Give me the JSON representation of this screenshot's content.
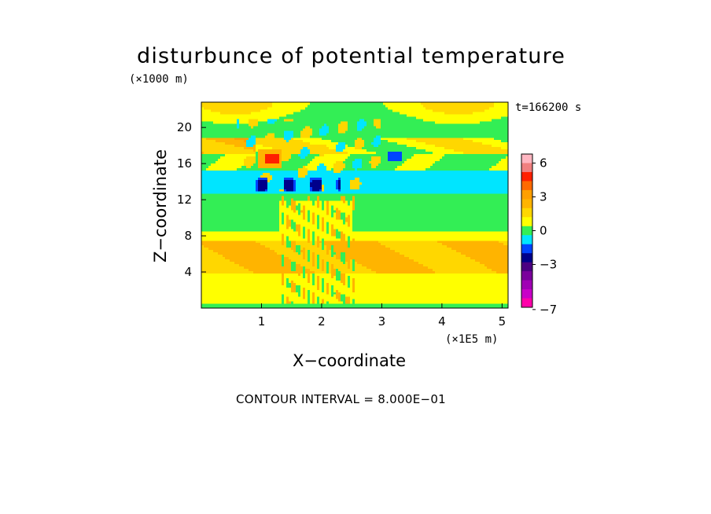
{
  "chart_data": {
    "type": "heatmap",
    "title": "disturbunce of potential temperature",
    "z_unit_label": "(×1000 m)",
    "x_unit_label": "(×1E5 m)",
    "time_label": "t=166200 s",
    "xlabel": "X−coordinate",
    "ylabel": "Z−coordinate",
    "contour_interval_text": "CONTOUR INTERVAL = 8.000E−01",
    "xlim": [
      0,
      5.1
    ],
    "ylim": [
      0,
      22.8
    ],
    "x_ticks": [
      1,
      2,
      3,
      4,
      5
    ],
    "x_tick_labels": [
      "1",
      "2",
      "3",
      "4",
      "5"
    ],
    "y_ticks": [
      4,
      8,
      12,
      16,
      20
    ],
    "y_tick_labels": [
      "4",
      "8",
      "12",
      "16",
      "20"
    ],
    "colorbar": {
      "levels": [
        {
          "min": 6.0,
          "max": 6.8,
          "color": "#ffb6c1"
        },
        {
          "min": 5.2,
          "max": 6.0,
          "color": "#f08080"
        },
        {
          "min": 4.4,
          "max": 5.2,
          "color": "#ff2000"
        },
        {
          "min": 3.6,
          "max": 4.4,
          "color": "#ff6a00"
        },
        {
          "min": 2.8,
          "max": 3.6,
          "color": "#ff9f00"
        },
        {
          "min": 2.0,
          "max": 2.8,
          "color": "#ffb400"
        },
        {
          "min": 1.2,
          "max": 2.0,
          "color": "#ffd700"
        },
        {
          "min": 0.4,
          "max": 1.2,
          "color": "#ffff00"
        },
        {
          "min": -0.4,
          "max": 0.4,
          "color": "#33ee55"
        },
        {
          "min": -1.2,
          "max": -0.4,
          "color": "#00e5ff"
        },
        {
          "min": -2.0,
          "max": -1.2,
          "color": "#0044ff"
        },
        {
          "min": -2.8,
          "max": -2.0,
          "color": "#00008b"
        },
        {
          "min": -3.6,
          "max": -2.8,
          "color": "#4b0082"
        },
        {
          "min": -4.4,
          "max": -3.6,
          "color": "#7a009c"
        },
        {
          "min": -5.2,
          "max": -4.4,
          "color": "#a000b4"
        },
        {
          "min": -6.0,
          "max": -5.2,
          "color": "#c800c8"
        },
        {
          "min": -6.8,
          "max": -6.0,
          "color": "#ff00aa"
        }
      ],
      "tick_values": [
        6,
        3,
        0,
        -3,
        -7
      ],
      "tick_labels": [
        "6",
        "3",
        "0",
        "−3",
        "−7"
      ]
    },
    "field_regions": [
      {
        "name": "background",
        "value": 0.0
      },
      {
        "name": "upper-yellow-patches",
        "value": 0.8,
        "z_range": [
          17.5,
          22.8
        ]
      },
      {
        "name": "orange-band-upper-left",
        "value": 2.4,
        "x_range": [
          0,
          0.9
        ],
        "z_range": [
          17,
          18.8
        ]
      },
      {
        "name": "cyan-layer",
        "value": -0.8,
        "z_range": [
          12.5,
          15.5
        ]
      },
      {
        "name": "blue-cell-cluster",
        "value": -2.4,
        "x_range": [
          0.8,
          2.3
        ],
        "z_range": [
          12.8,
          14.6
        ]
      },
      {
        "name": "blue-cell-right",
        "value": -1.6,
        "x_range": [
          3.1,
          3.35
        ],
        "z_range": [
          16.5,
          17.3
        ]
      },
      {
        "name": "red-cell",
        "value": 4.0,
        "x_range": [
          1.05,
          1.25
        ],
        "z_range": [
          16.2,
          17.0
        ]
      },
      {
        "name": "green-layer-mid",
        "value": 0.0,
        "z_range": [
          8.5,
          12.5
        ]
      },
      {
        "name": "orange-band-lower",
        "value": 2.0,
        "z_range": [
          4.0,
          7.5
        ]
      },
      {
        "name": "yellow-layer-lower",
        "value": 0.8,
        "z_range": [
          0.5,
          4.0
        ]
      },
      {
        "name": "green-surface",
        "value": 0.0,
        "z_range": [
          0,
          0.5
        ]
      }
    ]
  }
}
